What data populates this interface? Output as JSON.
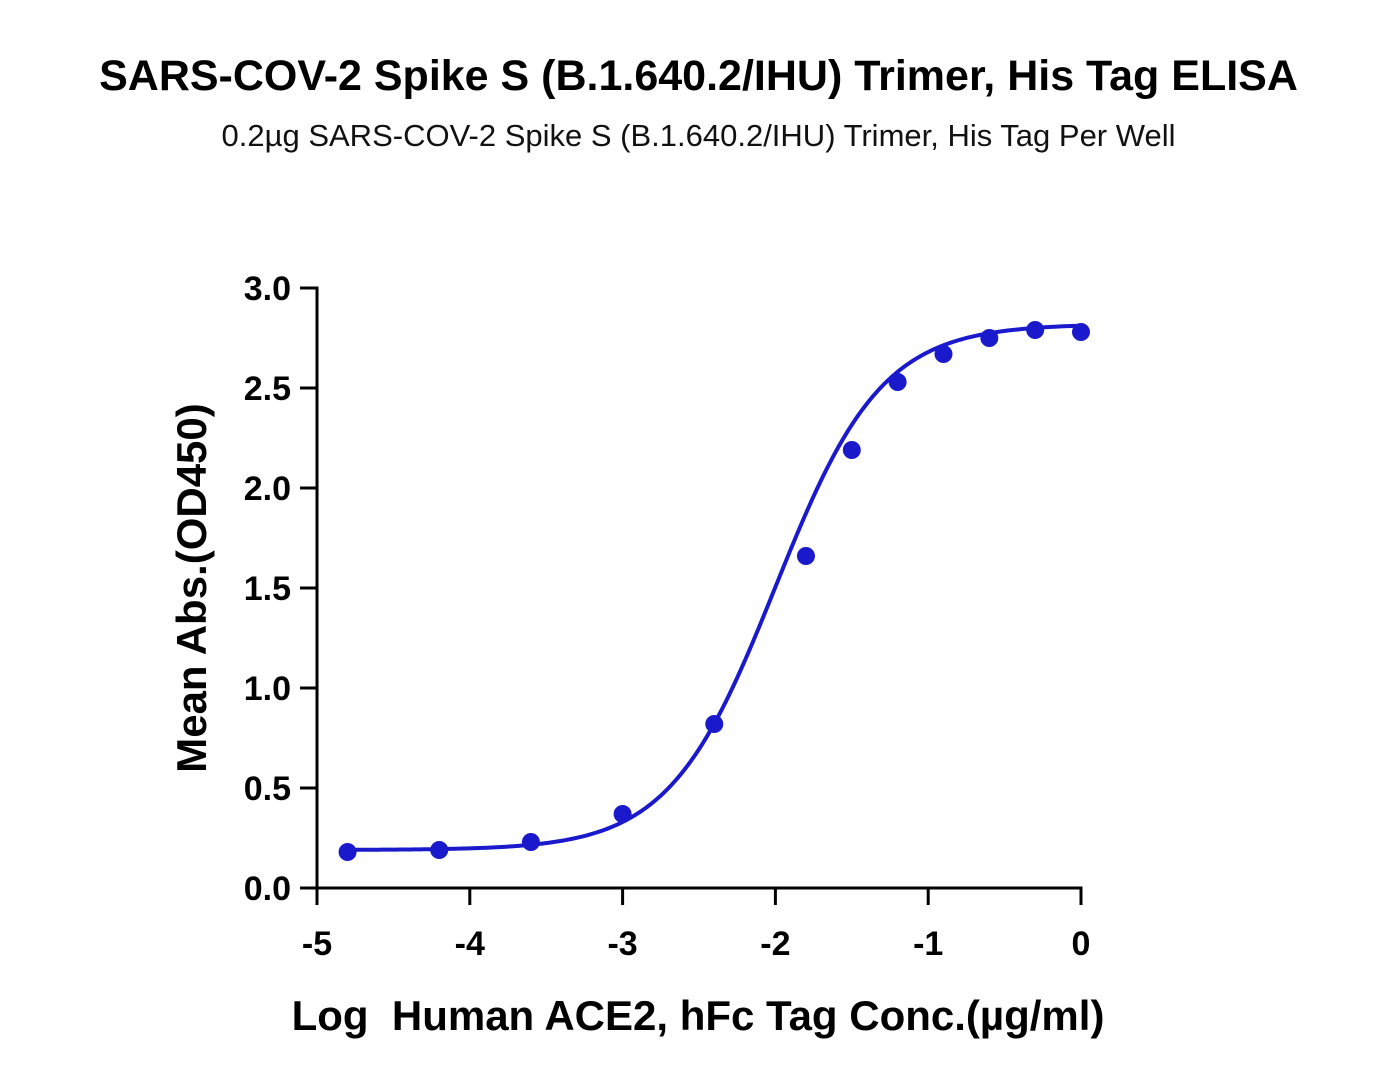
{
  "chart_data": {
    "type": "scatter",
    "title": "SARS-COV-2 Spike S (B.1.640.2/IHU) Trimer, His Tag ELISA",
    "subtitle": "0.2µg SARS-COV-2 Spike S (B.1.640.2/IHU) Trimer, His Tag Per Well",
    "xlabel": "Log  Human ACE2, hFc Tag Conc.(µg/ml)",
    "ylabel": "Mean Abs.(OD450)",
    "xlim": [
      -5,
      0
    ],
    "ylim": [
      0,
      3.0
    ],
    "x_ticks": [
      "-5",
      "-4",
      "-3",
      "-2",
      "-1",
      "0"
    ],
    "y_ticks": [
      "0.0",
      "0.5",
      "1.0",
      "1.5",
      "2.0",
      "2.5",
      "3.0"
    ],
    "grid": false,
    "series": [
      {
        "color": "#1a1acc",
        "x": [
          -4.8,
          -4.2,
          -3.6,
          -3.0,
          -2.4,
          -1.8,
          -1.5,
          -1.2,
          -0.9,
          -0.6,
          -0.3,
          0.0
        ],
        "y": [
          0.18,
          0.19,
          0.23,
          0.37,
          0.82,
          1.66,
          2.19,
          2.53,
          2.67,
          2.75,
          2.79,
          2.78
        ]
      }
    ],
    "fit_curve": {
      "type": "4PL",
      "bottom": 0.19,
      "top": 2.82,
      "log_ec50": -2.0,
      "hill_slope": 1.25
    }
  }
}
